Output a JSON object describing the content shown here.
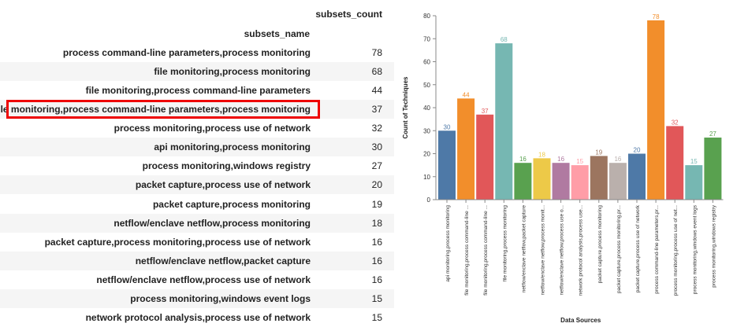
{
  "table": {
    "count_header": "subsets_count",
    "name_header": "subsets_name",
    "highlighted_row": 3,
    "rows": [
      {
        "name": "process command-line parameters,process monitoring",
        "count": "78"
      },
      {
        "name": "file monitoring,process monitoring",
        "count": "68"
      },
      {
        "name": "file monitoring,process command-line parameters",
        "count": "44"
      },
      {
        "name": "file monitoring,process command-line parameters,process monitoring",
        "count": "37"
      },
      {
        "name": "process monitoring,process use of network",
        "count": "32"
      },
      {
        "name": "api monitoring,process monitoring",
        "count": "30"
      },
      {
        "name": "process monitoring,windows registry",
        "count": "27"
      },
      {
        "name": "packet capture,process use of network",
        "count": "20"
      },
      {
        "name": "packet capture,process monitoring",
        "count": "19"
      },
      {
        "name": "netflow/enclave netflow,process monitoring",
        "count": "18"
      },
      {
        "name": "packet capture,process monitoring,process use of network",
        "count": "16"
      },
      {
        "name": "netflow/enclave netflow,packet capture",
        "count": "16"
      },
      {
        "name": "netflow/enclave netflow,process use of network",
        "count": "16"
      },
      {
        "name": "process monitoring,windows event logs",
        "count": "15"
      },
      {
        "name": "network protocol analysis,process use of network",
        "count": "15"
      }
    ]
  },
  "chart_data": {
    "type": "bar",
    "xlabel": "Data Sources",
    "ylabel": "Count of Techniques",
    "ylim": [
      0,
      80
    ],
    "yticks": [
      0,
      10,
      20,
      30,
      40,
      50,
      60,
      70,
      80
    ],
    "categories": [
      "api monitoring,process monitoring",
      "file monitoring,process command-line ...",
      "file monitoring,process command-line ...",
      "file monitoring,process monitoring",
      "netflow/enclave netflow,packet capture",
      "netflow/enclave netflow,process monit...",
      "netflow/enclave netflow,process use o...",
      "network protocol analysis,process use...",
      "packet capture,process monitoring",
      "packet capture,process monitoring,pr...",
      "packet capture,process use of network",
      "process command-line parameters,pr...",
      "process monitoring,process use of net...",
      "process monitoring,windows event logs",
      "process monitoring,windows registry"
    ],
    "values": [
      30,
      44,
      37,
      68,
      16,
      18,
      16,
      15,
      19,
      16,
      20,
      78,
      32,
      15,
      27
    ],
    "colors": [
      "#4e79a7",
      "#f28e2b",
      "#e15759",
      "#76b7b2",
      "#59a14f",
      "#edc948",
      "#b07aa1",
      "#ff9da7",
      "#9c755f",
      "#bab0ac",
      "#4e79a7",
      "#f28e2b",
      "#e15759",
      "#76b7b2",
      "#59a14f"
    ]
  }
}
